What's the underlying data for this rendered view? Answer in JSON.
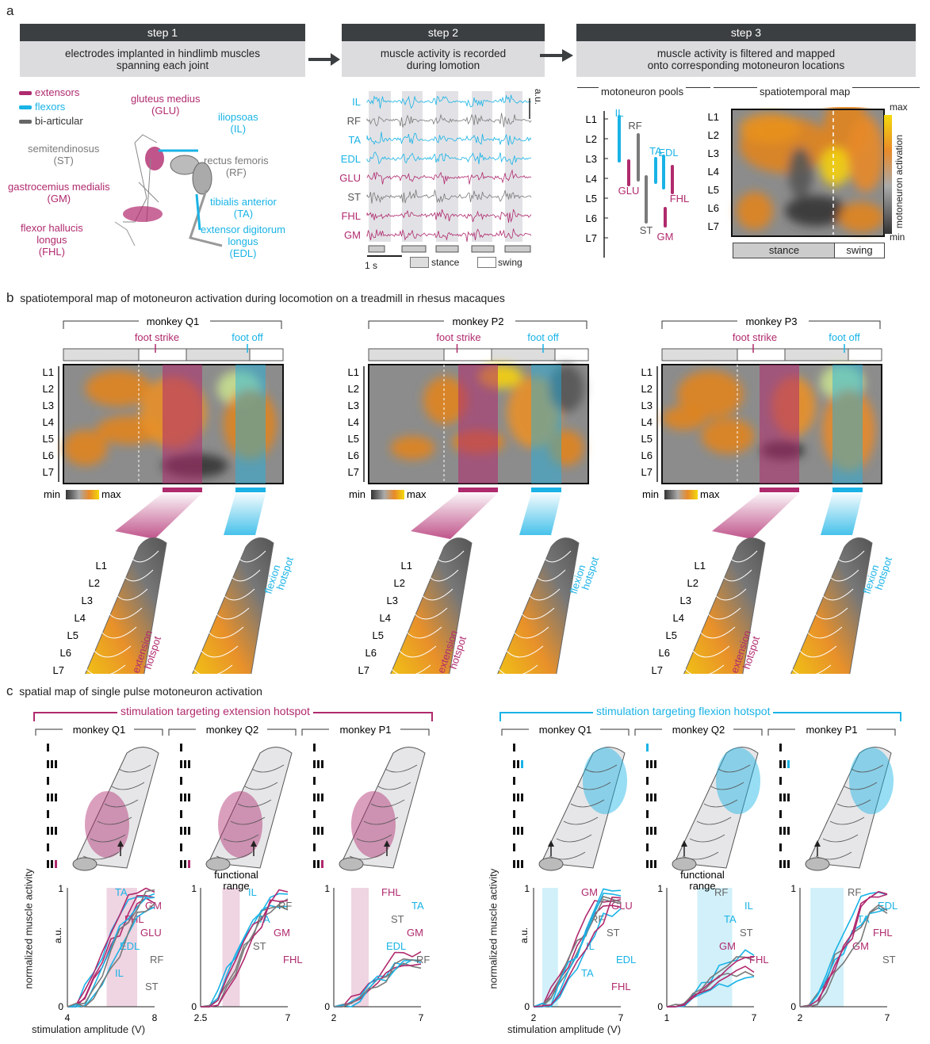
{
  "panel_a": {
    "letter": "a",
    "steps": [
      {
        "header": "step 1",
        "body": [
          "electrodes implanted in hindlimb muscles",
          "spanning each joint"
        ]
      },
      {
        "header": "step 2",
        "body": [
          "muscle activity is recorded",
          "during lomotion"
        ]
      },
      {
        "header": "step 3",
        "body": [
          "muscle activity is filtered and mapped",
          "onto corresponding motoneuron locations"
        ]
      }
    ],
    "legend": {
      "extensors": "extensors",
      "flexors": "flexors",
      "biarticular": "bi-articular"
    },
    "muscles": {
      "glu": [
        "gluteus medius",
        "(GLU)"
      ],
      "il": [
        "iliopsoas",
        "(IL)"
      ],
      "st": [
        "semitendinosus",
        "(ST)"
      ],
      "rf": [
        "rectus femoris",
        "(RF)"
      ],
      "gm": [
        "gastrocemius medialis",
        "(GM)"
      ],
      "ta": [
        "tibialis anterior",
        "(TA)"
      ],
      "fhl": [
        "flexor hallucis",
        "longus",
        "(FHL)"
      ],
      "edl": [
        "extensor digitorum",
        "longus",
        "(EDL)"
      ]
    },
    "emg_channels": [
      "IL",
      "RF",
      "TA",
      "EDL",
      "GLU",
      "ST",
      "FHL",
      "GM"
    ],
    "emg_scale": "a.u.",
    "time_scale": "1 s",
    "stance": "stance",
    "swing": "swing",
    "pools_title": "motoneuron pools",
    "map_title": "spatiotemporal map",
    "segments": [
      "L1",
      "L2",
      "L3",
      "L4",
      "L5",
      "L6",
      "L7"
    ],
    "pool_labels": [
      "IL",
      "RF",
      "TA",
      "EDL",
      "GLU",
      "FHL",
      "ST",
      "GM"
    ],
    "colorbar_max": "max",
    "colorbar_min": "min",
    "colorbar_label": [
      "motoneuron",
      "activation"
    ]
  },
  "panel_b": {
    "letter": "b",
    "title": "spatiotemporal map of motoneuron activation during locomotion on a treadmill in rhesus macaques",
    "monkeys": [
      "monkey Q1",
      "monkey P2",
      "monkey P3"
    ],
    "foot_strike": "foot strike",
    "foot_off": "foot off",
    "cmin": "min",
    "cmax": "max",
    "extension_hotspot": [
      "extension",
      "hotspot"
    ],
    "flexion_hotspot": [
      "flexion",
      "hotspot"
    ]
  },
  "panel_c": {
    "letter": "c",
    "title": "spatial map of single pulse motoneuron activation",
    "ext_group": "stimulation targeting extension hotspot",
    "flex_group": "stimulation targeting flexion hotspot",
    "monkeys": [
      "monkey Q1",
      "monkey Q2",
      "monkey P1"
    ],
    "ylabel": "normalized muscle activity",
    "yunit": "a.u.",
    "xlabel": "stimulation amplitude (V)",
    "functional_range": [
      "functional",
      "range"
    ],
    "y_ticks": [
      "0",
      "1"
    ],
    "ext_plots": [
      {
        "x_ticks": [
          "4",
          "8"
        ],
        "labels": [
          "TA",
          "GM",
          "FHL",
          "GLU",
          "EDL",
          "RF",
          "IL",
          "ST"
        ]
      },
      {
        "x_ticks": [
          "2.5",
          "7"
        ],
        "labels": [
          "IL",
          "RF",
          "TA",
          "GM",
          "ST",
          "FHL"
        ]
      },
      {
        "x_ticks": [
          "2",
          "7"
        ],
        "labels": [
          "FHL",
          "TA",
          "ST",
          "GM",
          "EDL",
          "RF"
        ]
      }
    ],
    "flex_plots": [
      {
        "x_ticks": [
          "2",
          "7"
        ],
        "labels": [
          "GM",
          "GLU",
          "RF",
          "ST",
          "IL",
          "EDL",
          "TA",
          "FHL"
        ]
      },
      {
        "x_ticks": [
          "1",
          "7"
        ],
        "labels": [
          "RF",
          "IL",
          "TA",
          "ST",
          "GM",
          "FHL"
        ]
      },
      {
        "x_ticks": [
          "2",
          "7"
        ],
        "labels": [
          "RF",
          "EDL",
          "TA",
          "FHL",
          "GM",
          "ST"
        ]
      }
    ]
  },
  "colors": {
    "extensor": "#b02a6e",
    "flexor": "#19b3e6",
    "biarticular": "#7a7a7a",
    "step_header": "#3c3f41",
    "step_body": "#dcdcdf"
  }
}
